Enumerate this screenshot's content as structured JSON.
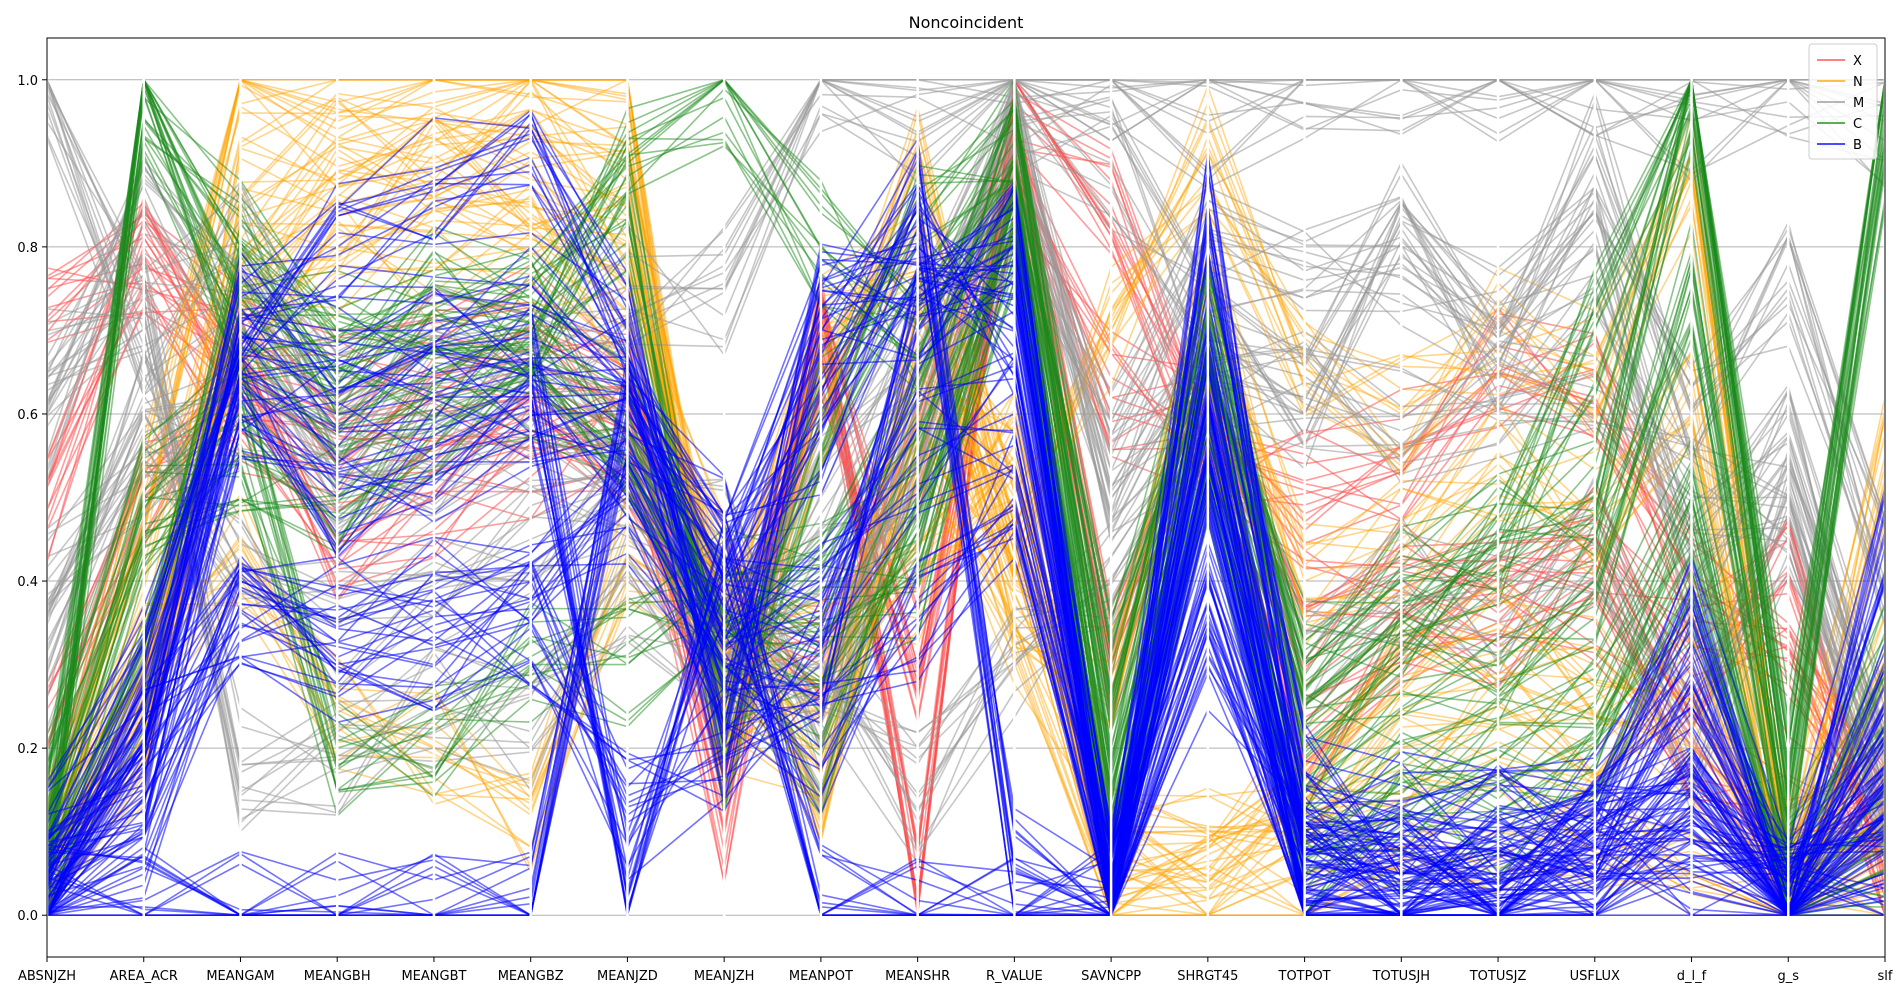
{
  "chart_data": {
    "type": "parallel-coordinates",
    "title": "Noncoincident",
    "axes": [
      "ABSNJZH",
      "AREA_ACR",
      "MEANGAM",
      "MEANGBH",
      "MEANGBT",
      "MEANGBZ",
      "MEANJZD",
      "MEANJZH",
      "MEANPOT",
      "MEANSHR",
      "R_VALUE",
      "SAVNCPP",
      "SHRGT45",
      "TOTPOT",
      "TOTUSJH",
      "TOTUSJZ",
      "USFLUX",
      "d_l_f",
      "g_s",
      "slf"
    ],
    "ylim": [
      -0.05,
      1.05
    ],
    "yticks": [
      "0.0",
      "0.2",
      "0.4",
      "0.6",
      "0.8",
      "1.0"
    ],
    "grid": "horizontal",
    "legend_position": "top-right",
    "series": [
      {
        "name": "X",
        "color": "#ff4d4d",
        "opacity": 0.55,
        "profiles": [
          [
            0.75,
            0.78,
            0.7,
            0.62,
            0.68,
            0.7,
            0.62,
            0.1,
            0.72,
            0.02,
            0.96,
            0.85,
            0.56,
            0.52,
            0.55,
            0.65,
            0.62,
            0.4,
            0.29,
            0.1
          ],
          [
            0.47,
            0.8,
            0.6,
            0.55,
            0.6,
            0.62,
            0.55,
            0.22,
            0.7,
            0.3,
            0.9,
            0.62,
            0.58,
            0.37,
            0.43,
            0.4,
            0.45,
            0.3,
            0.4,
            0.05
          ],
          [
            0.2,
            0.5,
            0.65,
            0.45,
            0.5,
            0.55,
            0.57,
            0.35,
            0.3,
            0.55,
            0.92,
            0.3,
            0.6,
            0.2,
            0.3,
            0.35,
            0.38,
            0.2,
            0.1,
            0.15
          ]
        ]
      },
      {
        "name": "N",
        "color": "#ffa500",
        "opacity": 0.45,
        "profiles": [
          [
            0.05,
            0.5,
            1.0,
            0.95,
            1.0,
            1.0,
            0.98,
            0.2,
            0.6,
            0.9,
            0.45,
            0.7,
            0.92,
            0.67,
            0.6,
            0.7,
            0.65,
            0.89,
            0.05,
            0.55
          ],
          [
            0.1,
            0.35,
            0.85,
            0.92,
            0.9,
            0.94,
            0.85,
            0.3,
            0.7,
            0.8,
            0.4,
            0.3,
            0.75,
            0.4,
            0.45,
            0.55,
            0.48,
            0.6,
            0.02,
            0.3
          ],
          [
            0.02,
            0.2,
            0.75,
            0.85,
            0.88,
            0.85,
            0.8,
            0.25,
            0.2,
            0.7,
            0.5,
            0.02,
            0.05,
            0.2,
            0.3,
            0.35,
            0.3,
            0.2,
            0.01,
            0.1
          ],
          [
            0.05,
            0.25,
            0.7,
            0.8,
            0.78,
            0.8,
            0.7,
            0.4,
            0.1,
            0.6,
            0.35,
            0.05,
            0.02,
            0.05,
            0.1,
            0.1,
            0.1,
            0.05,
            0.01,
            0.05
          ],
          [
            0.08,
            0.3,
            0.45,
            0.25,
            0.2,
            0.12,
            0.45,
            0.35,
            0.3,
            0.4,
            0.55,
            0.1,
            0.1,
            0.1,
            0.2,
            0.25,
            0.2,
            0.3,
            0.02,
            0.2
          ]
        ]
      },
      {
        "name": "M",
        "color": "#999999",
        "opacity": 0.55,
        "profiles": [
          [
            1.0,
            0.7,
            0.8,
            0.6,
            0.7,
            0.65,
            0.75,
            0.75,
            1.0,
            0.95,
            1.0,
            1.0,
            0.95,
            1.0,
            1.0,
            1.0,
            1.0,
            0.95,
            1.0,
            0.95
          ],
          [
            0.6,
            0.85,
            0.7,
            0.55,
            0.6,
            0.62,
            0.55,
            0.3,
            0.5,
            0.7,
            0.95,
            0.9,
            0.7,
            0.6,
            0.83,
            0.7,
            0.91,
            0.6,
            0.75,
            0.4
          ],
          [
            0.3,
            0.6,
            0.4,
            0.35,
            0.4,
            0.45,
            0.5,
            0.35,
            0.4,
            0.5,
            0.85,
            0.55,
            0.8,
            0.76,
            0.78,
            0.68,
            0.8,
            0.4,
            0.6,
            0.2
          ],
          [
            0.65,
            0.72,
            0.18,
            0.19,
            0.25,
            0.22,
            0.4,
            0.3,
            0.3,
            0.14,
            0.3,
            0.4,
            0.6,
            0.3,
            0.4,
            0.35,
            0.45,
            0.2,
            0.48,
            0.15
          ],
          [
            0.4,
            0.55,
            0.6,
            0.5,
            0.55,
            0.58,
            0.55,
            0.45,
            0.2,
            0.6,
            0.98,
            0.5,
            0.65,
            0.62,
            0.58,
            0.62,
            0.65,
            0.5,
            0.5,
            0.1
          ]
        ]
      },
      {
        "name": "C",
        "color": "#1a8a1a",
        "opacity": 0.5,
        "profiles": [
          [
            0.1,
            1.0,
            0.8,
            0.65,
            0.7,
            0.75,
            0.9,
            1.0,
            0.8,
            0.7,
            0.9,
            0.3,
            0.7,
            0.25,
            0.35,
            0.42,
            0.7,
            1.0,
            0.2,
            1.0
          ],
          [
            0.05,
            0.99,
            0.7,
            0.6,
            0.65,
            0.7,
            0.85,
            0.2,
            0.6,
            0.82,
            0.95,
            0.2,
            0.72,
            0.3,
            0.4,
            0.45,
            0.5,
            0.99,
            0.1,
            0.9
          ],
          [
            0.15,
            0.5,
            0.6,
            0.18,
            0.22,
            0.3,
            0.3,
            0.4,
            0.4,
            0.6,
            0.9,
            0.15,
            0.65,
            0.2,
            0.28,
            0.3,
            0.4,
            0.75,
            0.05,
            0.3
          ],
          [
            0.05,
            0.45,
            0.55,
            0.5,
            0.6,
            0.65,
            0.55,
            0.3,
            0.2,
            0.5,
            0.85,
            0.1,
            0.6,
            0.1,
            0.15,
            0.2,
            0.25,
            0.5,
            0.02,
            0.15
          ],
          [
            0.02,
            0.3,
            0.75,
            0.7,
            0.75,
            0.72,
            0.6,
            0.35,
            0.35,
            0.4,
            0.8,
            0.05,
            0.55,
            0.05,
            0.1,
            0.12,
            0.15,
            0.4,
            0.01,
            0.05
          ]
        ]
      },
      {
        "name": "B",
        "color": "#0000ff",
        "opacity": 0.55,
        "profiles": [
          [
            0.09,
            0.3,
            0.74,
            0.8,
            0.88,
            0.89,
            0.7,
            0.2,
            0.73,
            0.74,
            0.8,
            0.02,
            0.85,
            0.15,
            0.12,
            0.1,
            0.12,
            0.36,
            0.02,
            0.46
          ],
          [
            0.05,
            0.2,
            0.72,
            0.7,
            0.7,
            0.72,
            0.65,
            0.4,
            0.58,
            0.8,
            0.7,
            0.02,
            0.6,
            0.08,
            0.05,
            0.06,
            0.1,
            0.25,
            0.02,
            0.25
          ],
          [
            0.03,
            0.15,
            0.6,
            0.5,
            0.55,
            0.58,
            0.55,
            0.35,
            0.4,
            0.55,
            0.6,
            0.01,
            0.5,
            0.05,
            0.04,
            0.05,
            0.08,
            0.15,
            0.01,
            0.15
          ],
          [
            0.02,
            0.1,
            0.4,
            0.35,
            0.4,
            0.42,
            0.5,
            0.3,
            0.2,
            0.35,
            0.5,
            0.01,
            0.4,
            0.03,
            0.03,
            0.04,
            0.06,
            0.1,
            0.01,
            0.1
          ],
          [
            0.01,
            0.01,
            0.0,
            0.0,
            0.0,
            0.0,
            0.6,
            0.45,
            0.01,
            0.0,
            0.0,
            0.01,
            0.55,
            0.02,
            0.02,
            0.03,
            0.05,
            0.05,
            0.01,
            0.05
          ],
          [
            0.02,
            0.2,
            0.35,
            0.3,
            0.32,
            0.35,
            0.12,
            0.2,
            0.3,
            0.7,
            0.8,
            0.03,
            0.7,
            0.1,
            0.08,
            0.08,
            0.1,
            0.2,
            0.02,
            0.2
          ],
          [
            0.04,
            0.25,
            0.65,
            0.6,
            0.62,
            0.65,
            0.02,
            0.4,
            0.7,
            0.85,
            0.05,
            0.02,
            0.3,
            0.06,
            0.05,
            0.05,
            0.07,
            0.12,
            0.01,
            0.08
          ]
        ]
      }
    ]
  }
}
